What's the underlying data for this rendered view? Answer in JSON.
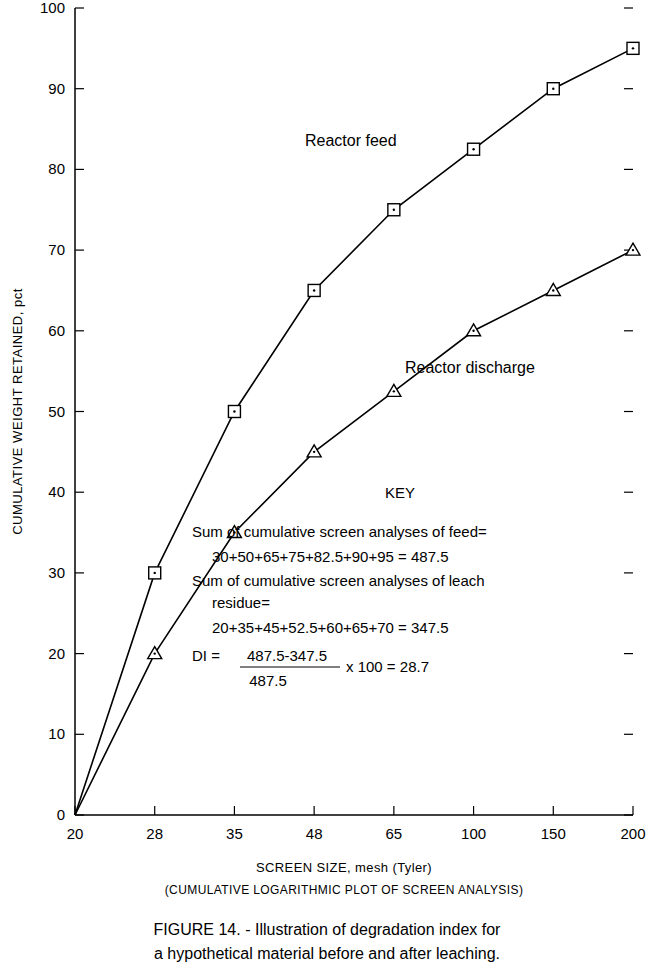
{
  "chart_data": {
    "type": "line",
    "title": [
      "FIGURE 14. - Illustration of degradation index for",
      "a hypothetical material before and after leaching."
    ],
    "xlabel": [
      "SCREEN SIZE, mesh (Tyler)",
      "(CUMULATIVE LOGARITHMIC PLOT OF SCREEN ANALYSIS)"
    ],
    "ylabel": "CUMULATIVE WEIGHT RETAINED, pct",
    "categories": [
      "20",
      "28",
      "35",
      "48",
      "65",
      "100",
      "150",
      "200"
    ],
    "series": [
      {
        "name": "Reactor feed",
        "color": "#000000",
        "marker": "square",
        "line_style": "solid",
        "values": [
          0,
          30,
          50,
          65,
          75,
          82.5,
          90,
          95
        ]
      },
      {
        "name": "Reactor discharge",
        "color": "#000000",
        "marker": "triangle",
        "line_style": "solid",
        "values": [
          0,
          20,
          35,
          45,
          52.5,
          60,
          65,
          70
        ]
      }
    ],
    "ylim": [
      0,
      100
    ],
    "yticks": [
      0,
      10,
      20,
      30,
      40,
      50,
      60,
      70,
      80,
      90,
      100
    ],
    "grid": false,
    "annotations": {
      "key_title": "KEY",
      "lines": [
        "Sum of cumulative screen analyses of feed=",
        "30+50+65+75+82.5+90+95 = 487.5",
        "Sum of cumulative screen analyses of leach",
        "residue=",
        "20+35+45+52.5+60+65+70 = 347.5"
      ],
      "formula": {
        "label": "DI =",
        "numerator": "487.5-347.5",
        "denominator": "487.5",
        "result": "x 100 = 28.7"
      }
    }
  }
}
